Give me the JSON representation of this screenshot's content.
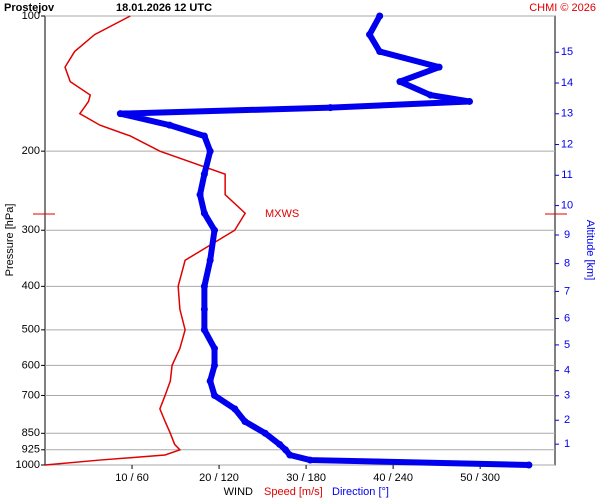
{
  "chart_data": {
    "type": "profile",
    "title": "Prostejov",
    "subtitle": "18.01.2026 12 UTC",
    "credit": "CHMI © 2026",
    "ylabel": "Pressure [hPa]",
    "y2label": "Altitude [km]",
    "xlabel": "WIND",
    "log_y": true,
    "pressure": [
      1000,
      975,
      950,
      925,
      900,
      850,
      800,
      750,
      700,
      650,
      600,
      550,
      500,
      450,
      400,
      350,
      300,
      275,
      250,
      225,
      200,
      185,
      175,
      165,
      160,
      155,
      150,
      140,
      130,
      120,
      110,
      100
    ],
    "series": [
      {
        "name": "Speed [m/s]",
        "color": "#e00000",
        "axis": "x",
        "values": [
          0,
          6.3,
          13.8,
          15.5,
          14.9,
          14.4,
          13.8,
          13.2,
          13.8,
          14.4,
          14.6,
          15.5,
          16.1,
          15.5,
          15.3,
          16.1,
          21.8,
          23,
          20.7,
          20.7,
          13.2,
          9.8,
          6.3,
          4.0,
          4.5,
          5.0,
          5.2,
          2.9,
          2.3,
          3.4,
          5.7,
          9.8
        ]
      },
      {
        "name": "Direction [°]",
        "color": "#0000ee",
        "axis": "x2",
        "values": [
          334,
          183,
          169,
          166,
          162,
          152,
          138,
          131,
          117,
          114,
          117,
          117,
          110,
          110,
          110,
          114,
          117,
          110,
          107,
          110,
          114,
          110,
          86,
          52,
          197,
          293,
          266,
          245,
          272,
          231,
          224,
          231
        ]
      }
    ],
    "ylim": [
      1000,
      100
    ],
    "yticks": [
      100,
      200,
      300,
      400,
      500,
      600,
      700,
      850,
      925,
      1000
    ],
    "xlim": [
      0,
      58.6
    ],
    "x2lim": [
      0,
      352
    ],
    "xticks": [
      {
        "value": 10,
        "label": "10 / 60"
      },
      {
        "value": 20,
        "label": "20 / 120"
      },
      {
        "value": 30,
        "label": "30 / 180"
      },
      {
        "value": 40,
        "label": "40 / 240"
      },
      {
        "value": 50,
        "label": "50 / 300"
      }
    ],
    "y2ticks": [
      1,
      2,
      3,
      4,
      5,
      6,
      7,
      8,
      9,
      10,
      11,
      12,
      13,
      14,
      15
    ],
    "y2color": "#0000ee",
    "grid": true,
    "annotation": {
      "label": "MXWS",
      "pressure": 276,
      "color": "#e00000"
    }
  }
}
